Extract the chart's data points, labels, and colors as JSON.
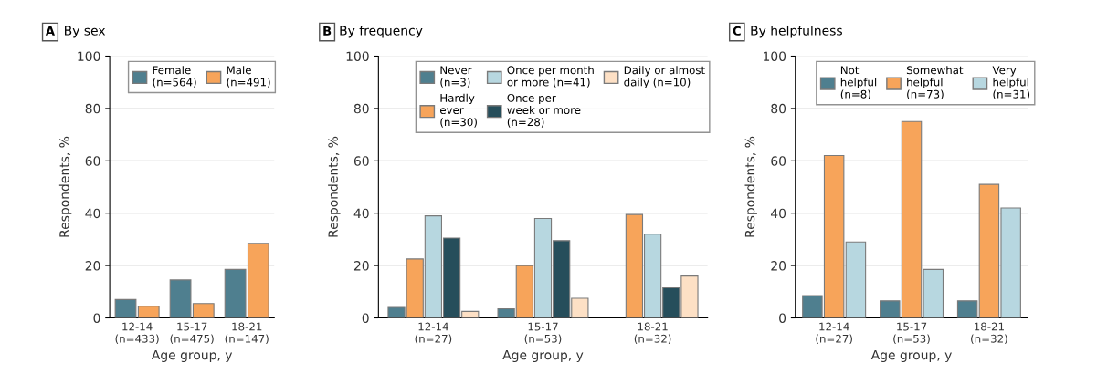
{
  "chart_data": [
    {
      "type": "bar",
      "title": "A By sex",
      "xlabel": "Age group, y",
      "ylabel": "Respondents, %",
      "categories": [
        "12-14\n(n=433)",
        "15-17\n(n=475)",
        "18-21\n(n=147)"
      ],
      "ylim": [
        0,
        100
      ],
      "yticks": [
        0,
        20,
        40,
        60,
        80,
        100
      ],
      "grid": "y",
      "legend": "top",
      "series": [
        {
          "name": "Female\n(n=564)",
          "color": "#4f7f8f",
          "values": [
            7,
            14.5,
            18.5
          ]
        },
        {
          "name": "Male\n(n=491)",
          "color": "#f7a45a",
          "values": [
            4.5,
            5.5,
            28.5
          ]
        }
      ]
    },
    {
      "type": "bar",
      "title": "B By frequency",
      "xlabel": "Age group, y",
      "ylabel": "Respondents, %",
      "categories": [
        "12-14\n(n=27)",
        "15-17\n(n=53)",
        "18-21\n(n=32)"
      ],
      "ylim": [
        0,
        100
      ],
      "yticks": [
        0,
        20,
        40,
        60,
        80,
        100
      ],
      "grid": "y",
      "legend": "top",
      "series": [
        {
          "name": "Never\n(n=3)",
          "color": "#4f7f8f",
          "values": [
            4,
            3.5,
            null
          ]
        },
        {
          "name": "Hardly\never\n(n=30)",
          "color": "#f7a45a",
          "values": [
            22.5,
            20,
            39.5
          ]
        },
        {
          "name": "Once per month\nor more (n=41)",
          "color": "#b7d7e0",
          "values": [
            39,
            38,
            32
          ]
        },
        {
          "name": "Once per\nweek or more\n(n=28)",
          "color": "#264e5b",
          "values": [
            30.5,
            29.5,
            11.5
          ]
        },
        {
          "name": "Daily or almost\ndaily (n=10)",
          "color": "#fde0c5",
          "values": [
            2.5,
            7.5,
            16
          ]
        }
      ]
    },
    {
      "type": "bar",
      "title": "C By helpfulness",
      "xlabel": "Age group, y",
      "ylabel": "Respondents, %",
      "categories": [
        "12-14\n(n=27)",
        "15-17\n(n=53)",
        "18-21\n(n=32)"
      ],
      "ylim": [
        0,
        100
      ],
      "yticks": [
        0,
        20,
        40,
        60,
        80,
        100
      ],
      "grid": "y",
      "legend": "top",
      "series": [
        {
          "name": "Not\nhelpful\n(n=8)",
          "color": "#4f7f8f",
          "values": [
            8.5,
            6.5,
            6.5
          ]
        },
        {
          "name": "Somewhat\nhelpful\n(n=73)",
          "color": "#f7a45a",
          "values": [
            62,
            75,
            51
          ]
        },
        {
          "name": "Very\nhelpful\n(n=31)",
          "color": "#b7d7e0",
          "values": [
            29,
            18.5,
            42
          ]
        }
      ]
    }
  ]
}
